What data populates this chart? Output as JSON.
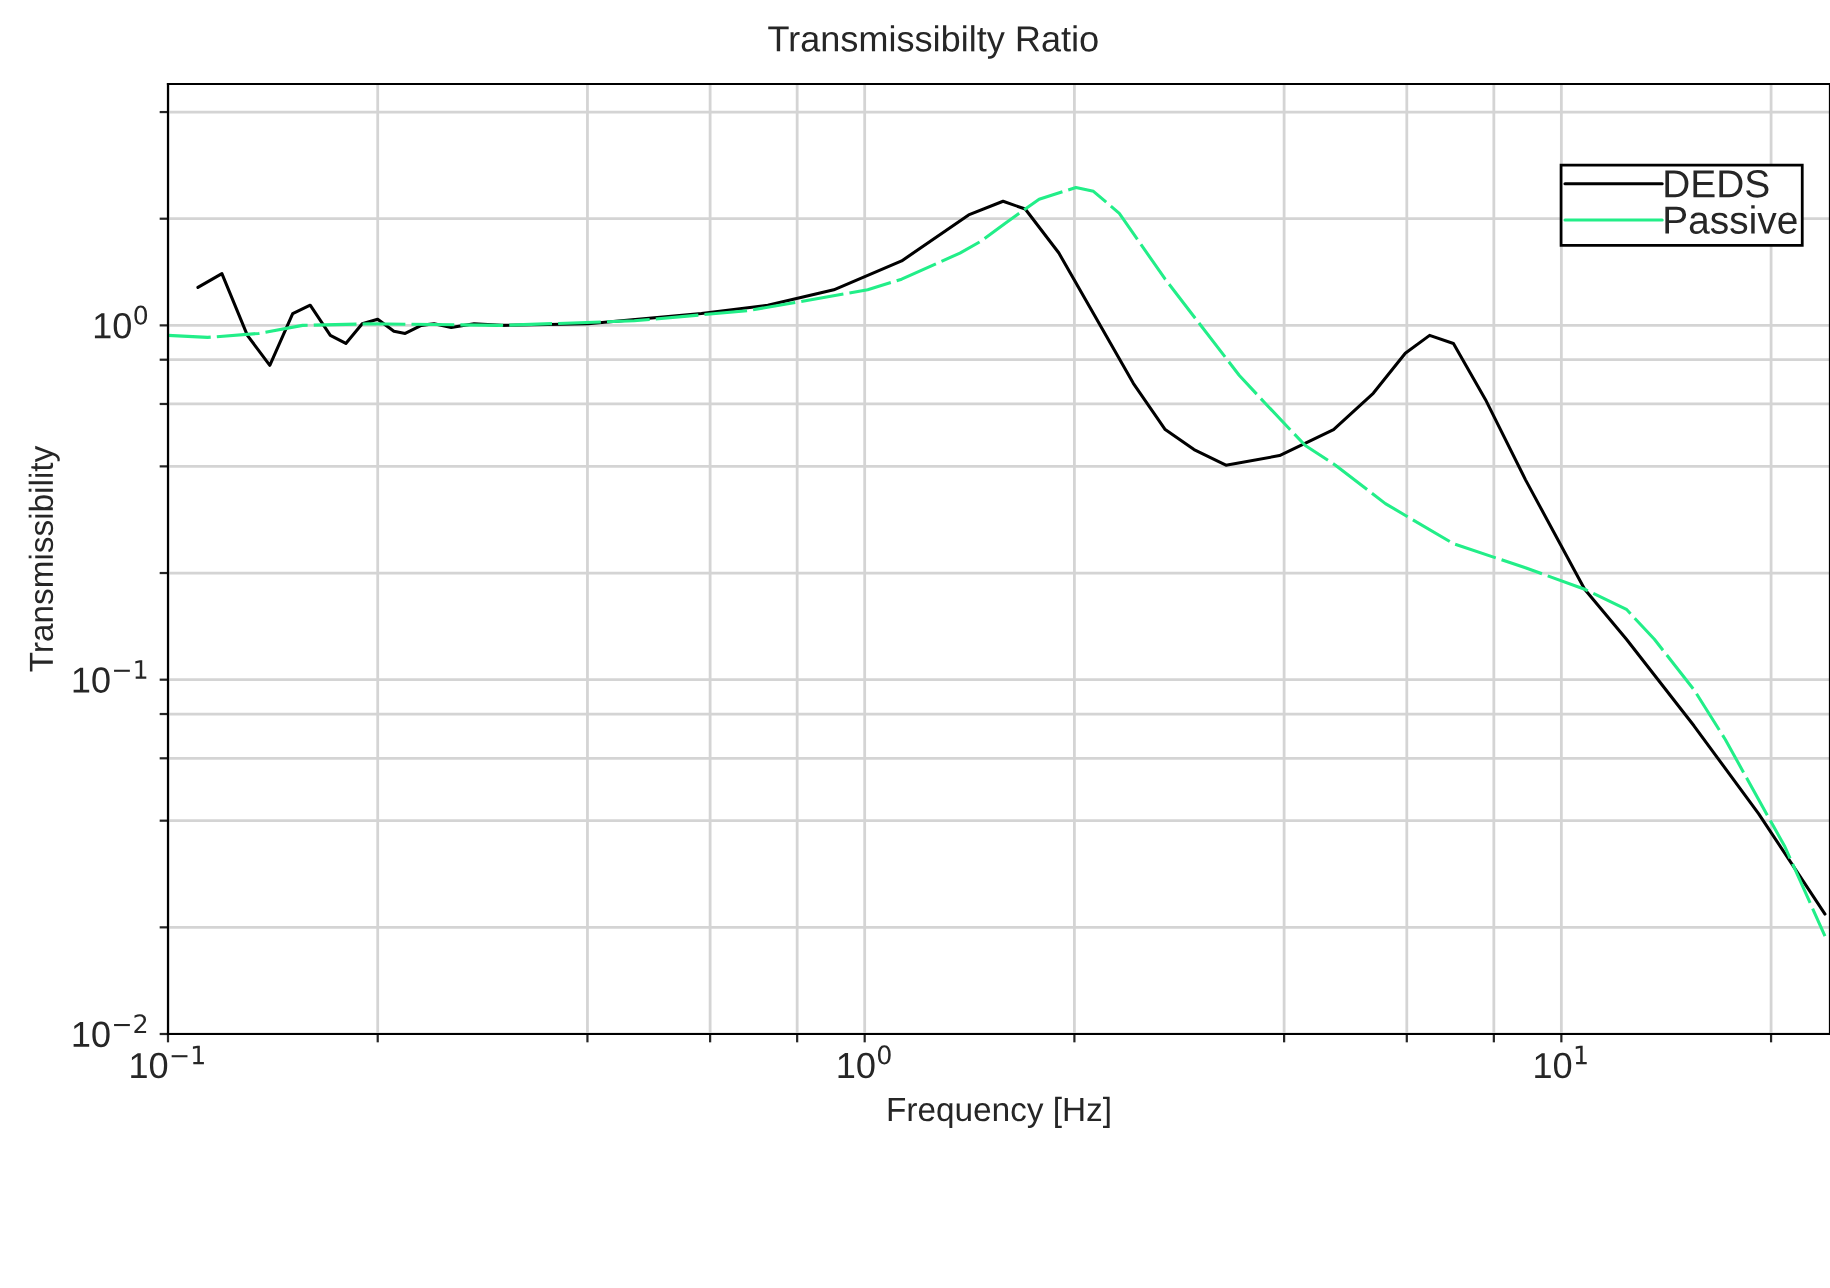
{
  "chart_data": {
    "type": "line",
    "title": "Transmissibilty Ratio",
    "xlabel": "Frequency [Hz]",
    "ylabel": "Transmissibility",
    "log": "xy",
    "grid": true,
    "legend": "top right",
    "xlim": [
      0.1,
      24.3
    ],
    "ylim": [
      0.01,
      4.8
    ],
    "xticks": [
      {
        "value": 0.1,
        "label": "10$^{−1}$"
      },
      {
        "value": 0.2,
        "label": null
      },
      {
        "value": 0.4,
        "label": null
      },
      {
        "value": 0.6,
        "label": null
      },
      {
        "value": 0.8,
        "label": null
      },
      {
        "value": 1,
        "label": "10$^{0}$"
      },
      {
        "value": 2,
        "label": null
      },
      {
        "value": 4,
        "label": null
      },
      {
        "value": 6,
        "label": null
      },
      {
        "value": 8,
        "label": null
      },
      {
        "value": 10,
        "label": "10$^{1}$"
      },
      {
        "value": 20,
        "label": null
      }
    ],
    "yticks": [
      {
        "value": 0.01,
        "label": "10$^{−2}$"
      },
      {
        "value": 0.02,
        "label": null
      },
      {
        "value": 0.04,
        "label": null
      },
      {
        "value": 0.06,
        "label": null
      },
      {
        "value": 0.08,
        "label": null
      },
      {
        "value": 0.1,
        "label": "10$^{−1}$"
      },
      {
        "value": 0.2,
        "label": null
      },
      {
        "value": 0.4,
        "label": null
      },
      {
        "value": 0.6,
        "label": null
      },
      {
        "value": 0.8,
        "label": null
      },
      {
        "value": 1,
        "label": "10$^{0}$"
      },
      {
        "value": 2,
        "label": null
      },
      {
        "value": 4,
        "label": null
      }
    ],
    "series": [
      {
        "name": "DEDS",
        "color": "#000000",
        "line_style": "solid",
        "x": [
          0.1104,
          0.1195,
          0.13,
          0.14,
          0.151,
          0.16,
          0.171,
          0.18,
          0.19,
          0.2,
          0.211,
          0.219,
          0.231,
          0.241,
          0.255,
          0.275,
          0.301,
          0.401,
          0.583,
          0.726,
          0.903,
          1.13,
          1.41,
          1.58,
          1.7,
          1.9,
          2.13,
          2.43,
          2.7,
          2.97,
          3.3,
          3.94,
          4.71,
          5.37,
          5.97,
          6.47,
          7.0,
          7.78,
          8.88,
          10.8,
          12.4,
          15.5,
          19.2,
          23.9
        ],
        "values": [
          1.28,
          1.4,
          0.937,
          0.771,
          1.08,
          1.14,
          0.937,
          0.889,
          1.01,
          1.04,
          0.962,
          0.949,
          1.0,
          1.01,
          0.987,
          1.01,
          1.0,
          1.01,
          1.08,
          1.14,
          1.26,
          1.52,
          2.05,
          2.24,
          2.13,
          1.6,
          1.08,
          0.686,
          0.508,
          0.446,
          0.403,
          0.429,
          0.508,
          0.643,
          0.834,
          0.937,
          0.889,
          0.618,
          0.367,
          0.18,
          0.13,
          0.0741,
          0.0418,
          0.0218
        ]
      },
      {
        "name": "Passive",
        "color": "#22ee88",
        "line_style": "dashed",
        "x": [
          0.1,
          0.114,
          0.135,
          0.156,
          0.194,
          0.301,
          0.467,
          0.68,
          1.01,
          1.13,
          1.37,
          1.47,
          1.59,
          1.78,
          2.01,
          2.13,
          2.32,
          2.7,
          3.45,
          3.76,
          4.29,
          4.74,
          5.59,
          7.0,
          8.88,
          10.8,
          12.4,
          13.6,
          15.5,
          17.2,
          19.2,
          20.9,
          23.9
        ],
        "values": [
          0.937,
          0.925,
          0.949,
          1.0,
          1.01,
          1.0,
          1.03,
          1.1,
          1.26,
          1.35,
          1.6,
          1.73,
          1.94,
          2.27,
          2.45,
          2.39,
          2.07,
          1.35,
          0.722,
          0.602,
          0.458,
          0.403,
          0.314,
          0.242,
          0.207,
          0.18,
          0.158,
          0.13,
          0.0937,
          0.0677,
          0.0458,
          0.034,
          0.0189
        ]
      }
    ]
  }
}
